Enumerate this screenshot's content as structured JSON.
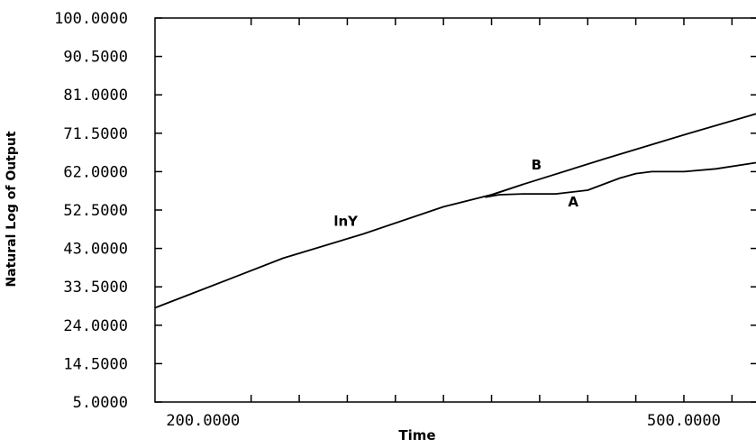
{
  "chart_data": {
    "type": "line",
    "title": "",
    "xlabel": "Time",
    "ylabel": "Natural Log of Output",
    "xlim": [
      170,
      545
    ],
    "ylim": [
      5,
      100
    ],
    "grid": false,
    "x_tick_labels": [
      {
        "value": 200,
        "text": "200.0000"
      },
      {
        "value": 500,
        "text": "500.0000"
      }
    ],
    "x_minor_ticks": [
      230,
      260,
      290,
      320,
      350,
      380,
      410,
      440,
      470,
      500,
      530
    ],
    "y_tick_labels": [
      {
        "value": 100,
        "text": "100.0000"
      },
      {
        "value": 90.5,
        "text": "90.5000"
      },
      {
        "value": 81,
        "text": "81.0000"
      },
      {
        "value": 71.5,
        "text": "71.5000"
      },
      {
        "value": 62,
        "text": "62.0000"
      },
      {
        "value": 52.5,
        "text": "52.5000"
      },
      {
        "value": 43,
        "text": "43.0000"
      },
      {
        "value": 33.5,
        "text": "33.5000"
      },
      {
        "value": 24,
        "text": "24.0000"
      },
      {
        "value": 14.5,
        "text": "14.5000"
      },
      {
        "value": 5,
        "text": "5.0000"
      }
    ],
    "series": [
      {
        "name": "",
        "x": [
          170,
          200,
          250,
          300,
          350,
          380,
          400
        ],
        "y": [
          28.3,
          32.9,
          40.6,
          46.6,
          53.3,
          56.3,
          58.9
        ]
      },
      {
        "name": "",
        "x": [
          376,
          385,
          400,
          420,
          440,
          460,
          470,
          480,
          500,
          520,
          545
        ],
        "y": [
          55.7,
          56.3,
          56.5,
          56.5,
          57.4,
          60.4,
          61.5,
          62.0,
          62.0,
          62.7,
          64.2
        ]
      },
      {
        "name": "",
        "x": [
          376,
          400,
          450,
          500,
          545
        ],
        "y": [
          55.7,
          58.9,
          65.1,
          71.1,
          76.3
        ]
      }
    ],
    "annotations": [
      {
        "text": "lnY",
        "x": 289,
        "y": 48.6
      },
      {
        "text": "B",
        "x": 408,
        "y": 62.5
      },
      {
        "text": "A",
        "x": 431,
        "y": 53.4
      }
    ]
  }
}
